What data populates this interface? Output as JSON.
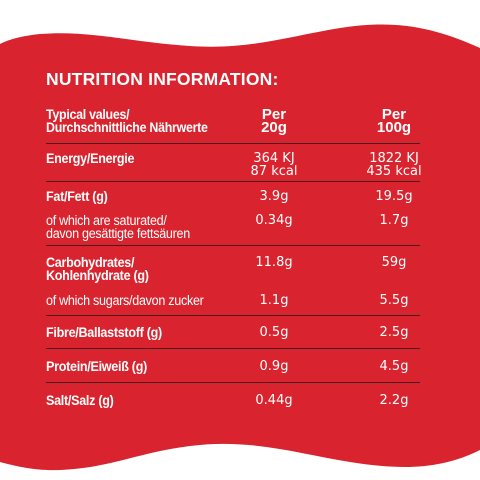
{
  "title": "NUTRITION INFORMATION:",
  "header": {
    "label_line1": "Typical values/",
    "label_line2": "Durchschnittliche Nährwerte",
    "col1_line1": "Per",
    "col1_line2": "20g",
    "col2_line1": "Per",
    "col2_line2": "100g"
  },
  "rows": [
    {
      "label": [
        "Energy/Energie"
      ],
      "bold": true,
      "v1": [
        "364 KJ",
        "87 kcal"
      ],
      "v2": [
        "1822 KJ",
        "435 kcal"
      ]
    },
    {
      "label": [
        "Fat/Fett (g)"
      ],
      "bold": true,
      "v1": [
        "3.9g"
      ],
      "v2": [
        "19.5g"
      ]
    },
    {
      "label": [
        "of which are saturated/",
        "davon gesättigte fettsäuren"
      ],
      "bold": false,
      "v1": [
        "0.34g"
      ],
      "v2": [
        "1.7g"
      ]
    },
    {
      "label": [
        "Carbohydrates/",
        "Kohlenhydrate (g)"
      ],
      "bold": true,
      "v1": [
        "11.8g"
      ],
      "v2": [
        "59g"
      ]
    },
    {
      "label": [
        "of which sugars/davon zucker"
      ],
      "bold": false,
      "v1": [
        "1.1g"
      ],
      "v2": [
        "5.5g"
      ]
    },
    {
      "label": [
        "Fibre/Ballaststoff (g)"
      ],
      "bold": true,
      "v1": [
        "0.5g"
      ],
      "v2": [
        "2.5g"
      ]
    },
    {
      "label": [
        "Protein/Eiweiß (g)"
      ],
      "bold": true,
      "v1": [
        "0.9g"
      ],
      "v2": [
        "4.5g"
      ]
    },
    {
      "label": [
        "Salt/Salz (g)"
      ],
      "bold": true,
      "v1": [
        "0.44g"
      ],
      "v2": [
        "2.2g"
      ]
    }
  ],
  "colors": {
    "background": "#d9232e",
    "wave": "#ffffff",
    "text": "#ffffff",
    "divider": "#4a1c20"
  }
}
